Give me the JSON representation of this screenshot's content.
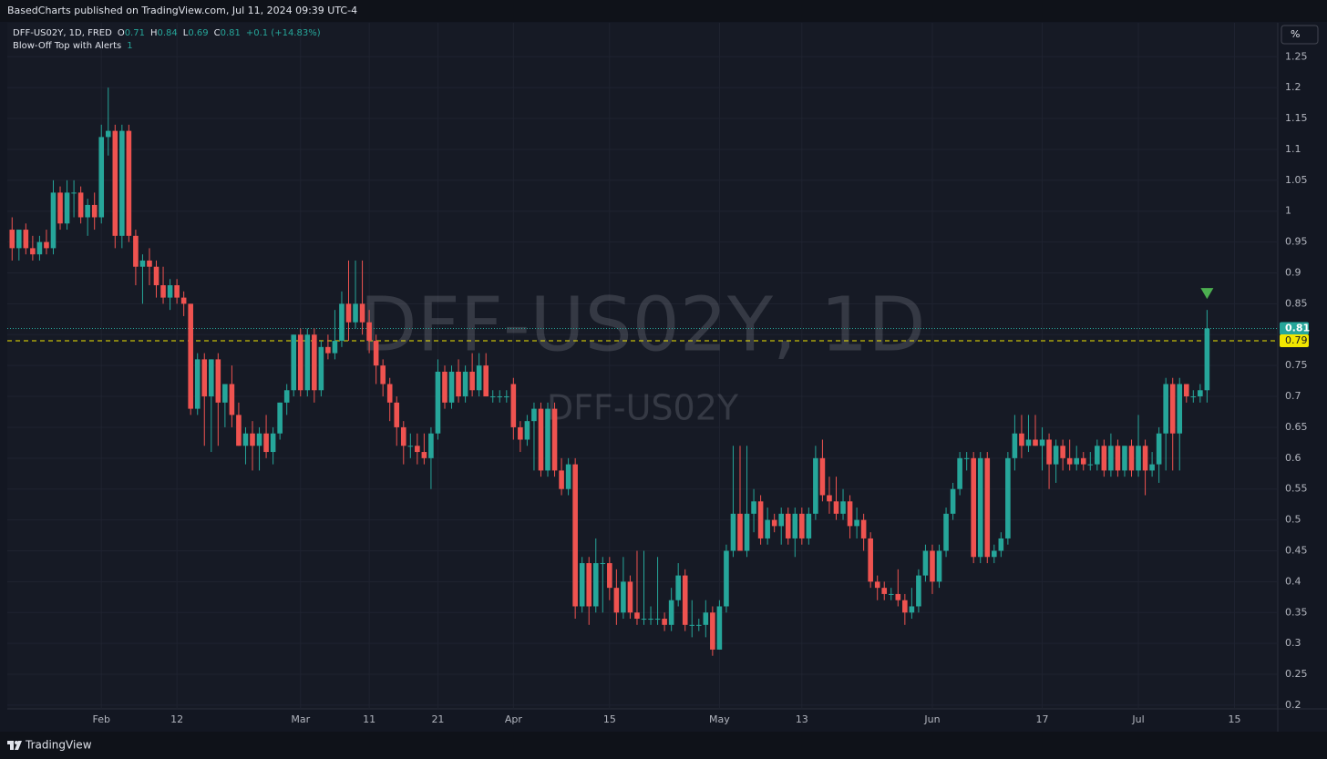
{
  "header": {
    "attribution": "BasedCharts published on TradingView.com, Jul 11, 2024 09:39 UTC-4"
  },
  "chart_data": {
    "type": "candlestick",
    "watermark": "DFF-US02Y, 1D",
    "watermark_sub": "DFF-US02Y",
    "legend": {
      "symbol": "DFF-US02Y, 1D, FRED",
      "open_label": "O",
      "open": 0.71,
      "high_label": "H",
      "high": 0.84,
      "low_label": "L",
      "low": 0.69,
      "close_label": "C",
      "close": 0.81,
      "change": "+0.1 (+14.83%)",
      "indicator": "Blow-Off Top with Alerts",
      "indicator_value": 1
    },
    "scale_button": "%",
    "up_color": "#26a69a",
    "down_color": "#ef5350",
    "grid": true,
    "xlim": [
      -0.7,
      184.3
    ],
    "xticks": [
      {
        "value": 13,
        "label": "Feb"
      },
      {
        "value": 24,
        "label": "12"
      },
      {
        "value": 42,
        "label": "Mar"
      },
      {
        "value": 52,
        "label": "11"
      },
      {
        "value": 62,
        "label": "21"
      },
      {
        "value": 73,
        "label": "Apr"
      },
      {
        "value": 87,
        "label": "15"
      },
      {
        "value": 103,
        "label": "May"
      },
      {
        "value": 115,
        "label": "13"
      },
      {
        "value": 134,
        "label": "Jun"
      },
      {
        "value": 150,
        "label": "17"
      },
      {
        "value": 164,
        "label": "Jul"
      },
      {
        "value": 178,
        "label": "15"
      }
    ],
    "ylim": [
      0.194,
      1.305
    ],
    "yticks": [
      0.2,
      0.25,
      0.3,
      0.35,
      0.4,
      0.45,
      0.5,
      0.55,
      0.6,
      0.65,
      0.7,
      0.75,
      0.8,
      0.85,
      0.9,
      0.95,
      1,
      1.05,
      1.1,
      1.15,
      1.2,
      1.25
    ],
    "last_price": 0.81,
    "alert_level": 0.79,
    "signals": [
      {
        "index": 174
      }
    ],
    "open": [
      0.97,
      0.94,
      0.97,
      0.94,
      0.93,
      0.95,
      0.94,
      1.03,
      0.98,
      1.03,
      1.03,
      0.99,
      1.01,
      0.99,
      1.12,
      1.13,
      0.96,
      1.13,
      0.96,
      0.91,
      0.92,
      0.91,
      0.88,
      0.86,
      0.88,
      0.86,
      0.85,
      0.68,
      0.76,
      0.7,
      0.76,
      0.69,
      0.72,
      0.67,
      0.62,
      0.64,
      0.62,
      0.64,
      0.61,
      0.64,
      0.69,
      0.71,
      0.8,
      0.71,
      0.8,
      0.71,
      0.78,
      0.77,
      0.79,
      0.85,
      0.82,
      0.85,
      0.82,
      0.79,
      0.75,
      0.72,
      0.69,
      0.65,
      0.62,
      0.62,
      0.61,
      0.6,
      0.64,
      0.74,
      0.69,
      0.74,
      0.7,
      0.74,
      0.71,
      0.75,
      0.7,
      0.7,
      0.7,
      0.72,
      0.65,
      0.63,
      0.66,
      0.68,
      0.58,
      0.68,
      0.58,
      0.55,
      0.59,
      0.36,
      0.43,
      0.36,
      0.43,
      0.43,
      0.39,
      0.35,
      0.4,
      0.35,
      0.34,
      0.34,
      0.34,
      0.34,
      0.33,
      0.37,
      0.41,
      0.33,
      0.33,
      0.33,
      0.35,
      0.29,
      0.36,
      0.45,
      0.51,
      0.45,
      0.51,
      0.53,
      0.47,
      0.5,
      0.49,
      0.51,
      0.47,
      0.51,
      0.47,
      0.51,
      0.6,
      0.54,
      0.53,
      0.51,
      0.53,
      0.49,
      0.5,
      0.47,
      0.4,
      0.39,
      0.38,
      0.38,
      0.37,
      0.35,
      0.36,
      0.41,
      0.45,
      0.4,
      0.45,
      0.51,
      0.55,
      0.6,
      0.6,
      0.44,
      0.6,
      0.44,
      0.45,
      0.47,
      0.6,
      0.64,
      0.62,
      0.63,
      0.62,
      0.63,
      0.59,
      0.62,
      0.6,
      0.59,
      0.6,
      0.59,
      0.59,
      0.62,
      0.58,
      0.62,
      0.58,
      0.62,
      0.58,
      0.62,
      0.58,
      0.59,
      0.64,
      0.72,
      0.64,
      0.72,
      0.7,
      0.7,
      0.71
    ],
    "high": [
      0.99,
      0.97,
      0.98,
      0.96,
      0.96,
      0.97,
      1.05,
      1.04,
      1.05,
      1.05,
      1.04,
      1.02,
      1.03,
      1.14,
      1.2,
      1.14,
      1.14,
      1.14,
      0.97,
      0.93,
      0.94,
      0.92,
      0.91,
      0.89,
      0.89,
      0.87,
      0.85,
      0.77,
      0.77,
      0.76,
      0.77,
      0.72,
      0.75,
      0.69,
      0.65,
      0.66,
      0.65,
      0.67,
      0.65,
      0.69,
      0.72,
      0.8,
      0.81,
      0.81,
      0.81,
      0.79,
      0.8,
      0.84,
      0.87,
      0.92,
      0.92,
      0.92,
      0.84,
      0.8,
      0.76,
      0.73,
      0.7,
      0.66,
      0.64,
      0.64,
      0.64,
      0.65,
      0.76,
      0.75,
      0.75,
      0.76,
      0.75,
      0.77,
      0.77,
      0.77,
      0.71,
      0.71,
      0.71,
      0.73,
      0.66,
      0.67,
      0.69,
      0.69,
      0.69,
      0.69,
      0.6,
      0.6,
      0.6,
      0.44,
      0.44,
      0.47,
      0.44,
      0.44,
      0.42,
      0.44,
      0.41,
      0.45,
      0.45,
      0.36,
      0.44,
      0.35,
      0.39,
      0.43,
      0.42,
      0.37,
      0.34,
      0.37,
      0.36,
      0.37,
      0.46,
      0.62,
      0.62,
      0.62,
      0.55,
      0.54,
      0.52,
      0.51,
      0.52,
      0.52,
      0.52,
      0.52,
      0.52,
      0.62,
      0.63,
      0.57,
      0.57,
      0.55,
      0.54,
      0.52,
      0.51,
      0.48,
      0.41,
      0.4,
      0.39,
      0.42,
      0.38,
      0.39,
      0.42,
      0.46,
      0.46,
      0.46,
      0.52,
      0.56,
      0.61,
      0.61,
      0.61,
      0.61,
      0.61,
      0.46,
      0.48,
      0.61,
      0.67,
      0.67,
      0.67,
      0.67,
      0.65,
      0.64,
      0.63,
      0.63,
      0.63,
      0.62,
      0.61,
      0.61,
      0.63,
      0.63,
      0.64,
      0.63,
      0.62,
      0.63,
      0.67,
      0.63,
      0.61,
      0.65,
      0.73,
      0.73,
      0.73,
      0.72,
      0.71,
      0.72,
      0.84
    ],
    "low": [
      0.92,
      0.92,
      0.93,
      0.92,
      0.92,
      0.93,
      0.93,
      0.97,
      0.97,
      0.99,
      0.98,
      0.96,
      0.97,
      0.98,
      1.09,
      0.94,
      0.94,
      0.95,
      0.88,
      0.85,
      0.88,
      0.86,
      0.85,
      0.84,
      0.85,
      0.83,
      0.67,
      0.67,
      0.62,
      0.61,
      0.62,
      0.65,
      0.65,
      0.62,
      0.59,
      0.58,
      0.58,
      0.6,
      0.59,
      0.63,
      0.67,
      0.7,
      0.7,
      0.7,
      0.69,
      0.7,
      0.76,
      0.76,
      0.78,
      0.79,
      0.81,
      0.8,
      0.77,
      0.72,
      0.7,
      0.66,
      0.62,
      0.59,
      0.6,
      0.59,
      0.59,
      0.55,
      0.63,
      0.68,
      0.68,
      0.69,
      0.69,
      0.7,
      0.7,
      0.7,
      0.69,
      0.69,
      0.69,
      0.63,
      0.61,
      0.62,
      0.58,
      0.57,
      0.57,
      0.57,
      0.54,
      0.54,
      0.34,
      0.35,
      0.33,
      0.35,
      0.35,
      0.37,
      0.33,
      0.34,
      0.34,
      0.33,
      0.33,
      0.33,
      0.33,
      0.32,
      0.32,
      0.36,
      0.32,
      0.31,
      0.32,
      0.31,
      0.28,
      0.29,
      0.35,
      0.44,
      0.45,
      0.44,
      0.48,
      0.46,
      0.46,
      0.48,
      0.46,
      0.46,
      0.44,
      0.46,
      0.46,
      0.5,
      0.53,
      0.51,
      0.5,
      0.5,
      0.47,
      0.47,
      0.45,
      0.39,
      0.37,
      0.37,
      0.37,
      0.36,
      0.33,
      0.34,
      0.35,
      0.4,
      0.38,
      0.39,
      0.44,
      0.5,
      0.54,
      0.58,
      0.43,
      0.43,
      0.43,
      0.43,
      0.44,
      0.46,
      0.58,
      0.6,
      0.61,
      0.62,
      0.58,
      0.55,
      0.56,
      0.58,
      0.58,
      0.58,
      0.58,
      0.58,
      0.58,
      0.57,
      0.57,
      0.57,
      0.57,
      0.57,
      0.57,
      0.54,
      0.57,
      0.56,
      0.58,
      0.58,
      0.58,
      0.69,
      0.69,
      0.69,
      0.69
    ],
    "close": [
      0.94,
      0.97,
      0.94,
      0.93,
      0.95,
      0.94,
      1.03,
      0.98,
      1.03,
      1.03,
      0.99,
      1.01,
      0.99,
      1.12,
      1.13,
      0.96,
      1.13,
      0.96,
      0.91,
      0.92,
      0.91,
      0.88,
      0.86,
      0.88,
      0.86,
      0.85,
      0.68,
      0.76,
      0.7,
      0.76,
      0.69,
      0.72,
      0.67,
      0.62,
      0.64,
      0.62,
      0.64,
      0.61,
      0.64,
      0.69,
      0.71,
      0.8,
      0.71,
      0.8,
      0.71,
      0.78,
      0.77,
      0.79,
      0.85,
      0.82,
      0.85,
      0.82,
      0.79,
      0.75,
      0.72,
      0.69,
      0.65,
      0.62,
      0.62,
      0.61,
      0.6,
      0.64,
      0.74,
      0.69,
      0.74,
      0.7,
      0.74,
      0.71,
      0.75,
      0.7,
      0.7,
      0.7,
      0.7,
      0.65,
      0.63,
      0.66,
      0.68,
      0.58,
      0.68,
      0.58,
      0.55,
      0.59,
      0.36,
      0.43,
      0.36,
      0.43,
      0.43,
      0.39,
      0.35,
      0.4,
      0.35,
      0.34,
      0.34,
      0.34,
      0.34,
      0.33,
      0.37,
      0.41,
      0.33,
      0.33,
      0.33,
      0.35,
      0.29,
      0.36,
      0.45,
      0.51,
      0.45,
      0.51,
      0.53,
      0.47,
      0.5,
      0.49,
      0.51,
      0.47,
      0.51,
      0.47,
      0.51,
      0.6,
      0.54,
      0.53,
      0.51,
      0.53,
      0.49,
      0.5,
      0.47,
      0.4,
      0.39,
      0.38,
      0.38,
      0.37,
      0.35,
      0.36,
      0.41,
      0.45,
      0.4,
      0.45,
      0.51,
      0.55,
      0.6,
      0.6,
      0.44,
      0.6,
      0.44,
      0.45,
      0.47,
      0.6,
      0.64,
      0.62,
      0.63,
      0.62,
      0.63,
      0.59,
      0.62,
      0.6,
      0.59,
      0.6,
      0.59,
      0.59,
      0.62,
      0.58,
      0.62,
      0.58,
      0.62,
      0.58,
      0.62,
      0.58,
      0.59,
      0.64,
      0.72,
      0.64,
      0.72,
      0.7,
      0.7,
      0.71,
      0.81
    ]
  },
  "footer": {
    "brand": "TradingView"
  }
}
